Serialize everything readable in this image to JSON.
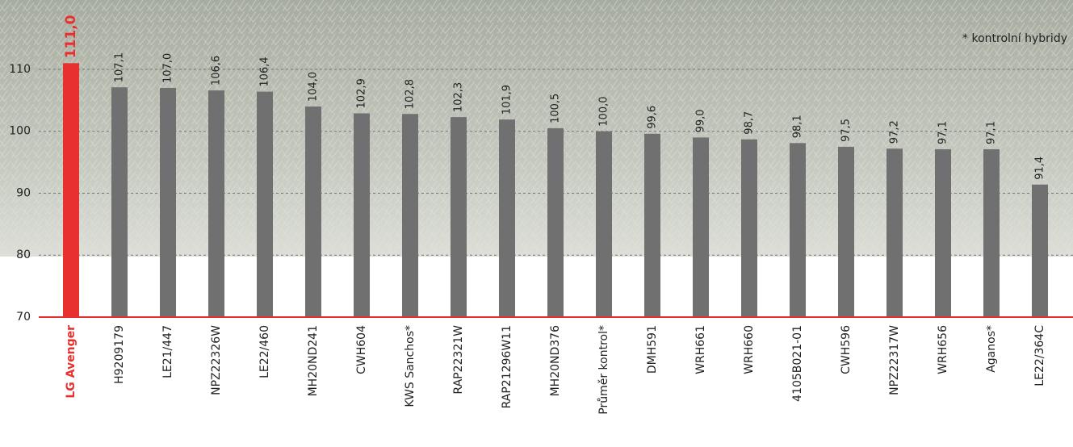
{
  "chart_data": {
    "type": "bar",
    "annotation": "* kontrolní hybridy",
    "categories": [
      "LG Avenger",
      "H9209179",
      "LE21/447",
      "NPZ22326W",
      "LE22/460",
      "MH20ND241",
      "CWH604",
      "KWS Sanchos*",
      "RAP22321W",
      "RAP21296W11",
      "MH20ND376",
      "Průměr kontrol*",
      "DMH591",
      "WRH661",
      "WRH660",
      "4105B021-01",
      "CWH596",
      "NPZ22317W",
      "WRH656",
      "Aganos*",
      "LE22/364C"
    ],
    "values": [
      111.0,
      107.1,
      107.0,
      106.6,
      106.4,
      104.0,
      102.9,
      102.8,
      102.3,
      101.9,
      100.5,
      100.0,
      99.6,
      99.0,
      98.7,
      98.1,
      97.5,
      97.2,
      97.1,
      97.1,
      91.4
    ],
    "value_labels": [
      "111,0",
      "107,1",
      "107,0",
      "106,6",
      "106,4",
      "104,0",
      "102,9",
      "102,8",
      "102,3",
      "101,9",
      "100,5",
      "100,0",
      "99,6",
      "99,0",
      "98,7",
      "98,1",
      "97,5",
      "97,2",
      "97,1",
      "97,1",
      "91,4"
    ],
    "color": "#707070",
    "colors": [
      "#e8312f",
      "#707070",
      "#707070",
      "#707070",
      "#707070",
      "#707070",
      "#707070",
      "#707070",
      "#707070",
      "#707070",
      "#707070",
      "#707070",
      "#707070",
      "#707070",
      "#707070",
      "#707070",
      "#707070",
      "#707070",
      "#707070",
      "#707070",
      "#707070"
    ],
    "ylim": [
      70,
      121.2
    ],
    "yticks": [
      70,
      80,
      90,
      100,
      110
    ],
    "grid": true
  }
}
